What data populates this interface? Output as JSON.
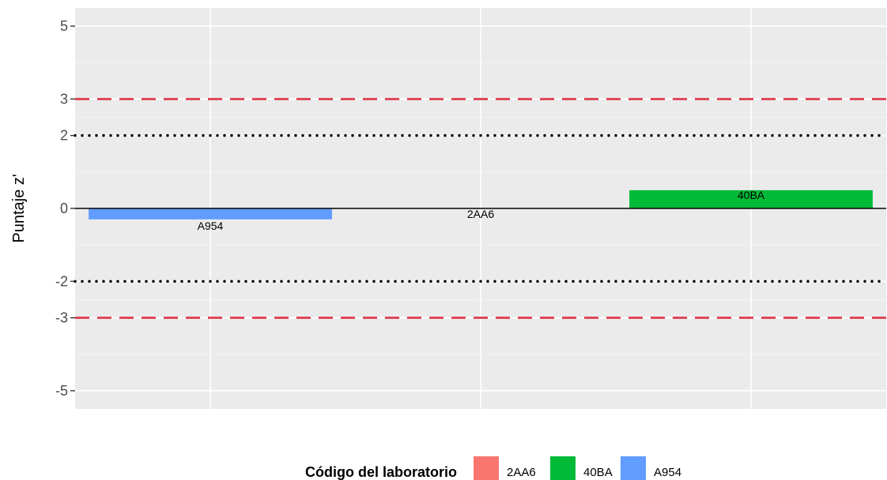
{
  "chart_data": {
    "type": "bar",
    "ylabel": "Puntaje z'",
    "xlabel": "",
    "ylim": [
      -5.5,
      5.5
    ],
    "y_ticks": [
      -5,
      -3,
      -2,
      0,
      2,
      3,
      5
    ],
    "y_tick_labels": [
      "-5",
      "-3",
      "-2",
      "0",
      "2",
      "3",
      "5"
    ],
    "categories": [
      "A954",
      "2AA6",
      "40BA"
    ],
    "values": [
      -0.3,
      0.0,
      0.5
    ],
    "bar_labels": [
      "A954",
      "2AA6",
      "40BA"
    ],
    "bar_colors": [
      "#619CFF",
      "#F8766D",
      "#00BA38"
    ],
    "reference_lines": [
      {
        "y": 3,
        "style": "dashed",
        "color": "#E0495A"
      },
      {
        "y": -3,
        "style": "dashed",
        "color": "#E0495A"
      },
      {
        "y": 2,
        "style": "dotted",
        "color": "#000000"
      },
      {
        "y": -2,
        "style": "dotted",
        "color": "#000000"
      },
      {
        "y": 0,
        "style": "solid",
        "color": "#000000"
      }
    ],
    "grid": true,
    "legend": {
      "title": "Código del laboratorio",
      "position": "bottom",
      "entries": [
        {
          "label": "2AA6",
          "color": "#F8766D"
        },
        {
          "label": "40BA",
          "color": "#00BA38"
        },
        {
          "label": "A954",
          "color": "#619CFF"
        }
      ]
    }
  }
}
